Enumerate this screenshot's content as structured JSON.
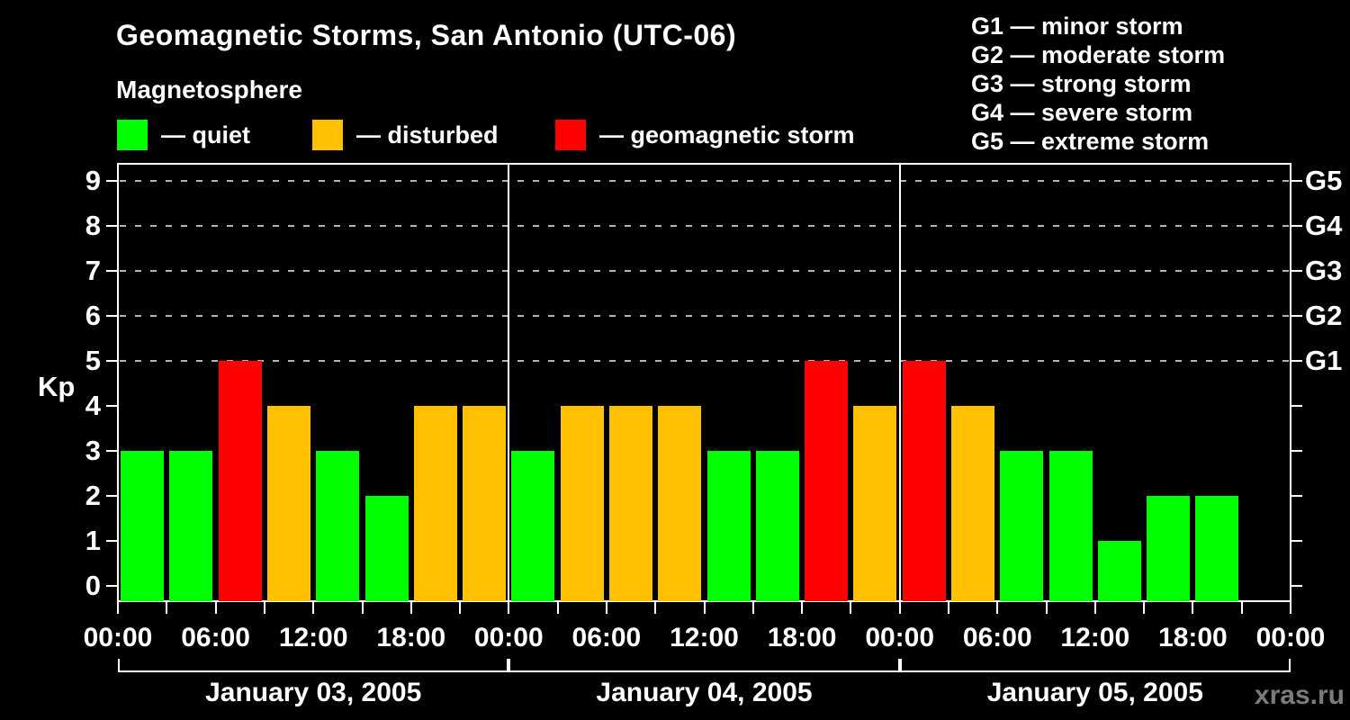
{
  "page": {
    "subtitle": "Magnetosphere",
    "watermark": "xras.ru"
  },
  "legend": {
    "items": [
      {
        "label": "— quiet",
        "level": "quiet",
        "color": "#00ff00"
      },
      {
        "label": "— disturbed",
        "level": "disturbed",
        "color": "#ffc000"
      },
      {
        "label": "— geomagnetic storm",
        "level": "storm",
        "color": "#ff0000"
      }
    ]
  },
  "storm_scale": {
    "lines": [
      "G1 — minor storm",
      "G2 — moderate storm",
      "G3 — strong storm",
      "G4 — severe storm",
      "G5 — extreme storm"
    ]
  },
  "chart_data": {
    "type": "bar",
    "title": "Geomagnetic Storms, San Antonio (UTC-06)",
    "ylabel": "Kp",
    "ylim": [
      0,
      9
    ],
    "y_ticks": [
      0,
      1,
      2,
      3,
      4,
      5,
      6,
      7,
      8,
      9
    ],
    "gridlines_at_kp": [
      5,
      6,
      7,
      8,
      9
    ],
    "grid_style": "dashed",
    "right_axis": [
      {
        "kp": 5,
        "label": "G1"
      },
      {
        "kp": 6,
        "label": "G2"
      },
      {
        "kp": 7,
        "label": "G3"
      },
      {
        "kp": 8,
        "label": "G4"
      },
      {
        "kp": 9,
        "label": "G5"
      }
    ],
    "hours_total": 72,
    "hours_per_bar": 3,
    "x_tick_every_hours": 3,
    "x_axis_hour_labels": [
      {
        "hour": 0,
        "label": "00:00"
      },
      {
        "hour": 6,
        "label": "06:00"
      },
      {
        "hour": 12,
        "label": "12:00"
      },
      {
        "hour": 18,
        "label": "18:00"
      },
      {
        "hour": 24,
        "label": "00:00"
      },
      {
        "hour": 30,
        "label": "06:00"
      },
      {
        "hour": 36,
        "label": "12:00"
      },
      {
        "hour": 42,
        "label": "18:00"
      },
      {
        "hour": 48,
        "label": "00:00"
      },
      {
        "hour": 54,
        "label": "06:00"
      },
      {
        "hour": 60,
        "label": "12:00"
      },
      {
        "hour": 66,
        "label": "18:00"
      },
      {
        "hour": 72,
        "label": "00:00"
      }
    ],
    "bar_colors": {
      "quiet": "#00ff00",
      "disturbed": "#ffc000",
      "storm": "#ff0000"
    },
    "days": [
      {
        "date": "January 03, 2005",
        "kp": [
          3,
          3,
          5,
          4,
          3,
          2,
          4,
          4
        ],
        "levels": [
          "quiet",
          "quiet",
          "storm",
          "disturbed",
          "quiet",
          "quiet",
          "disturbed",
          "disturbed"
        ]
      },
      {
        "date": "January 04, 2005",
        "kp": [
          3,
          4,
          4,
          4,
          3,
          3,
          5,
          4
        ],
        "levels": [
          "quiet",
          "disturbed",
          "disturbed",
          "disturbed",
          "quiet",
          "quiet",
          "storm",
          "disturbed"
        ]
      },
      {
        "date": "January 05, 2005",
        "kp": [
          5,
          4,
          3,
          3,
          1,
          2,
          2,
          null
        ],
        "levels": [
          "storm",
          "disturbed",
          "quiet",
          "quiet",
          "quiet",
          "quiet",
          "quiet",
          null
        ]
      }
    ]
  }
}
